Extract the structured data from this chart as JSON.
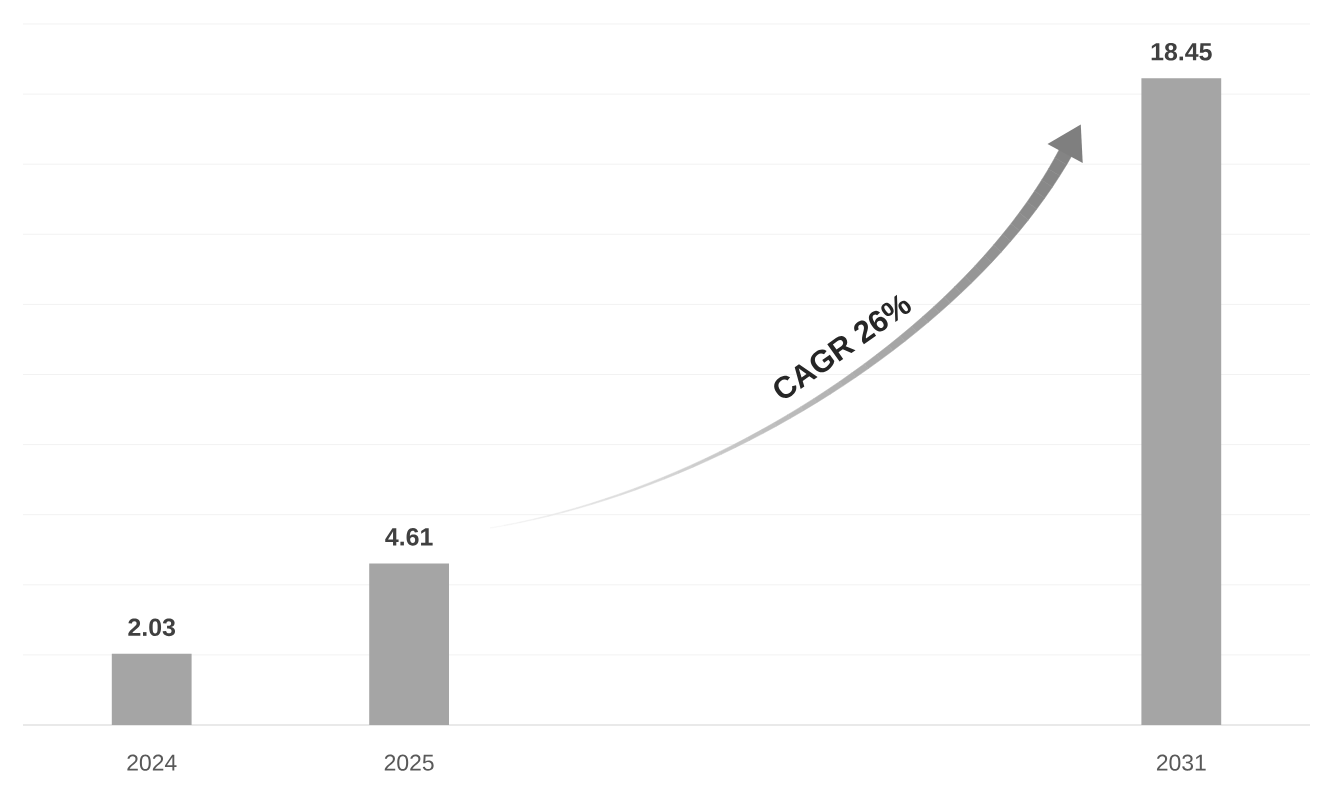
{
  "chart_data": {
    "type": "bar",
    "categories": [
      "2024",
      "2025",
      null,
      null,
      "2031"
    ],
    "values": [
      2.03,
      4.61,
      null,
      null,
      18.45
    ],
    "color": "#a5a5a5",
    "ylim": [
      0,
      20
    ],
    "yticks": [
      {
        "value": 0,
        "label": null
      },
      {
        "value": 2,
        "label": null
      },
      {
        "value": 4,
        "label": null
      },
      {
        "value": 6,
        "label": null
      },
      {
        "value": 8,
        "label": null
      },
      {
        "value": 10,
        "label": null
      },
      {
        "value": 12,
        "label": null
      },
      {
        "value": 14,
        "label": null
      },
      {
        "value": 16,
        "label": null
      },
      {
        "value": 18,
        "label": null
      },
      {
        "value": 20,
        "label": null
      }
    ],
    "grid": "y",
    "tick_labels": "x",
    "data_labels": true,
    "annotations": [
      "CAGR 26%"
    ]
  }
}
